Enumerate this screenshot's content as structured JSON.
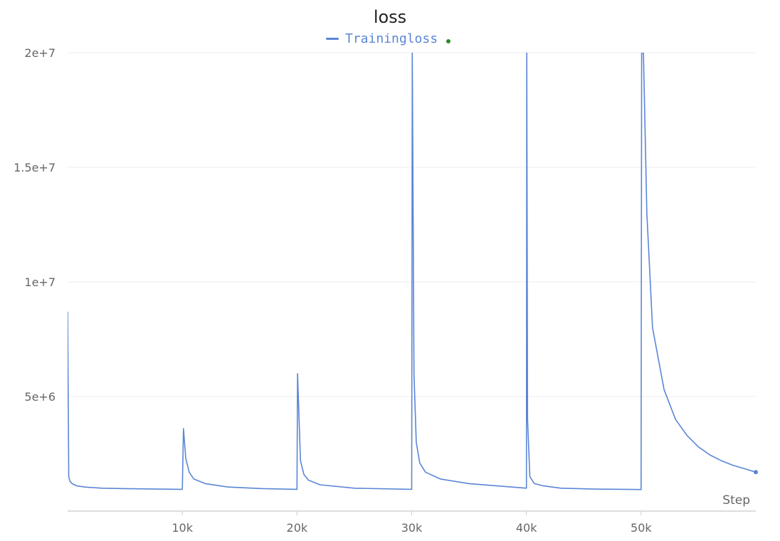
{
  "chart_data": {
    "type": "line",
    "title": "loss",
    "xlabel": "Step",
    "ylabel": "",
    "xlim": [
      0,
      60000
    ],
    "ylim": [
      0,
      20000000
    ],
    "grid": true,
    "legend": "top-center",
    "x_ticks": [
      10000,
      20000,
      30000,
      40000,
      50000
    ],
    "x_tick_labels": [
      "10k",
      "20k",
      "30k",
      "40k",
      "50k"
    ],
    "y_ticks": [
      5000000,
      10000000,
      15000000,
      20000000
    ],
    "y_tick_labels": [
      "5e+6",
      "1e+7",
      "1.5e+7",
      "2e+7"
    ],
    "series": [
      {
        "name": "Trainingloss",
        "color": "#5b86d6",
        "x": [
          0,
          100,
          200,
          400,
          800,
          1500,
          3000,
          5000,
          8000,
          10000,
          10100,
          10300,
          10600,
          11000,
          12000,
          14000,
          17000,
          20000,
          20050,
          20300,
          20600,
          21000,
          22000,
          25000,
          30000,
          30050,
          30200,
          30400,
          30700,
          31200,
          32500,
          35000,
          40000,
          40030,
          40100,
          40300,
          40700,
          41500,
          43000,
          46000,
          50000,
          50050,
          50200,
          50500,
          51000,
          52000,
          53000,
          54000,
          55000,
          56000,
          57000,
          58000,
          59000,
          60000
        ],
        "y": [
          8700000,
          1500000,
          1300000,
          1200000,
          1100000,
          1050000,
          1000000,
          980000,
          960000,
          950000,
          3600000,
          2300000,
          1700000,
          1400000,
          1200000,
          1050000,
          980000,
          950000,
          6000000,
          2200000,
          1600000,
          1350000,
          1150000,
          1000000,
          950000,
          20000000,
          6000000,
          3000000,
          2100000,
          1700000,
          1400000,
          1200000,
          1000000,
          20000000,
          4000000,
          1500000,
          1200000,
          1100000,
          1000000,
          960000,
          940000,
          20000000,
          20000000,
          13000000,
          8000000,
          5300000,
          4000000,
          3300000,
          2800000,
          2450000,
          2200000,
          2000000,
          1850000,
          1700000
        ]
      }
    ],
    "last_point_color": "#5b86d6"
  },
  "legend": {
    "dot_color": "#2a8a2a"
  }
}
